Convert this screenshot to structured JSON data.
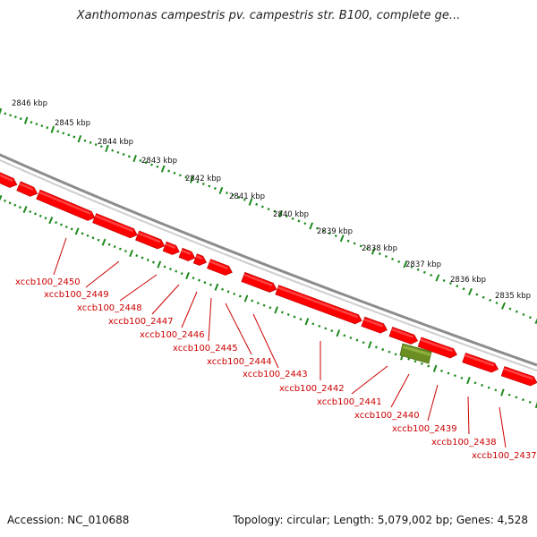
{
  "title": "Xanthomonas campestris pv. campestris str. B100, complete ge...",
  "footer": {
    "accession": "Accession: NC_010688",
    "summary": "Topology: circular; Length: 5,079,002 bp; Genes: 4,528"
  },
  "colors": {
    "backbone": "#8c8c8c",
    "gene_forward": "#ff0000",
    "gene_special": "#6b8e23",
    "tick": "#1e8a1e",
    "label": "#cc0000"
  },
  "scale_labels": [
    "2846 kbp",
    "2845 kbp",
    "2844 kbp",
    "2843 kbp",
    "2842 kbp",
    "2841 kbp",
    "2840 kbp",
    "2839 kbp",
    "2838 kbp",
    "2837 kbp",
    "2836 kbp",
    "2835 kbp"
  ],
  "genes": [
    {
      "id": "xccb100_2450",
      "type": "cds"
    },
    {
      "id": "xccb100_2449",
      "type": "cds"
    },
    {
      "id": "xccb100_2448",
      "type": "cds"
    },
    {
      "id": "xccb100_2447",
      "type": "cds"
    },
    {
      "id": "xccb100_2446",
      "type": "cds"
    },
    {
      "id": "xccb100_2445",
      "type": "cds"
    },
    {
      "id": "xccb100_2444",
      "type": "cds"
    },
    {
      "id": "xccb100_2443",
      "type": "cds"
    },
    {
      "id": "xccb100_2442",
      "type": "cds"
    },
    {
      "id": "xccb100_2441",
      "type": "cds"
    },
    {
      "id": "xccb100_2440",
      "type": "other"
    },
    {
      "id": "xccb100_2439",
      "type": "cds"
    },
    {
      "id": "xccb100_2438",
      "type": "cds"
    },
    {
      "id": "xccb100_2437",
      "type": "cds"
    }
  ]
}
